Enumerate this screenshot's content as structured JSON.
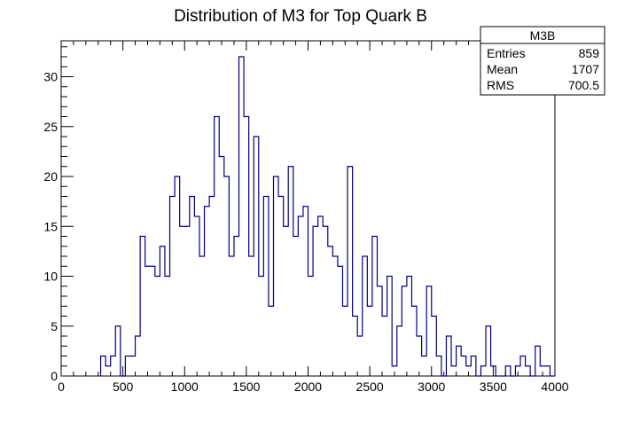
{
  "chart_data": {
    "type": "bar",
    "title": "Distribution of M3 for Top Quark B",
    "xlabel": "",
    "ylabel": "",
    "xlim": [
      0,
      4000
    ],
    "ylim": [
      0,
      33.6
    ],
    "x_ticks": [
      0,
      500,
      1000,
      1500,
      2000,
      2500,
      3000,
      3500,
      4000
    ],
    "y_ticks": [
      0,
      5,
      10,
      15,
      20,
      25,
      30
    ],
    "bin_width": 40,
    "line_color": "#000080",
    "grid": false,
    "bins_start": [
      320,
      360,
      400,
      440,
      480,
      520,
      560,
      600,
      640,
      680,
      720,
      760,
      800,
      840,
      880,
      920,
      960,
      1000,
      1040,
      1080,
      1120,
      1160,
      1200,
      1240,
      1280,
      1320,
      1360,
      1400,
      1440,
      1480,
      1520,
      1560,
      1600,
      1640,
      1680,
      1720,
      1760,
      1800,
      1840,
      1880,
      1920,
      1960,
      2000,
      2040,
      2080,
      2120,
      2160,
      2200,
      2240,
      2280,
      2320,
      2360,
      2400,
      2440,
      2480,
      2520,
      2560,
      2600,
      2640,
      2680,
      2720,
      2760,
      2800,
      2840,
      2880,
      2920,
      2960,
      3000,
      3040,
      3080,
      3120,
      3160,
      3200,
      3240,
      3280,
      3320,
      3360,
      3400,
      3440,
      3480,
      3520,
      3560,
      3600,
      3640,
      3680,
      3720,
      3760,
      3800,
      3840,
      3880,
      3920,
      3960
    ],
    "values": [
      2,
      1,
      2,
      5,
      0,
      2,
      2,
      4,
      14,
      11,
      11,
      10,
      13,
      10,
      18,
      20,
      15,
      15,
      18,
      16,
      12,
      17,
      18,
      26,
      22,
      20,
      12,
      14,
      32,
      26,
      12,
      24,
      10,
      18,
      7,
      20,
      18,
      15,
      21,
      14,
      16,
      17,
      10,
      15,
      16,
      15,
      13,
      12,
      11,
      7,
      21,
      6,
      4,
      12,
      7,
      14,
      9,
      6,
      10,
      1,
      5,
      9,
      10,
      7,
      4,
      2,
      9,
      6,
      2,
      0,
      4,
      1,
      3,
      2,
      1,
      2,
      0,
      1,
      5,
      1,
      0,
      0,
      1,
      0,
      1,
      2,
      1,
      0,
      3,
      1,
      1,
      0
    ]
  },
  "stats": {
    "name": "M3B",
    "rows": [
      {
        "label": "Entries",
        "value": "859"
      },
      {
        "label": "Mean",
        "value": "1707"
      },
      {
        "label": "RMS",
        "value": "700.5"
      }
    ]
  }
}
